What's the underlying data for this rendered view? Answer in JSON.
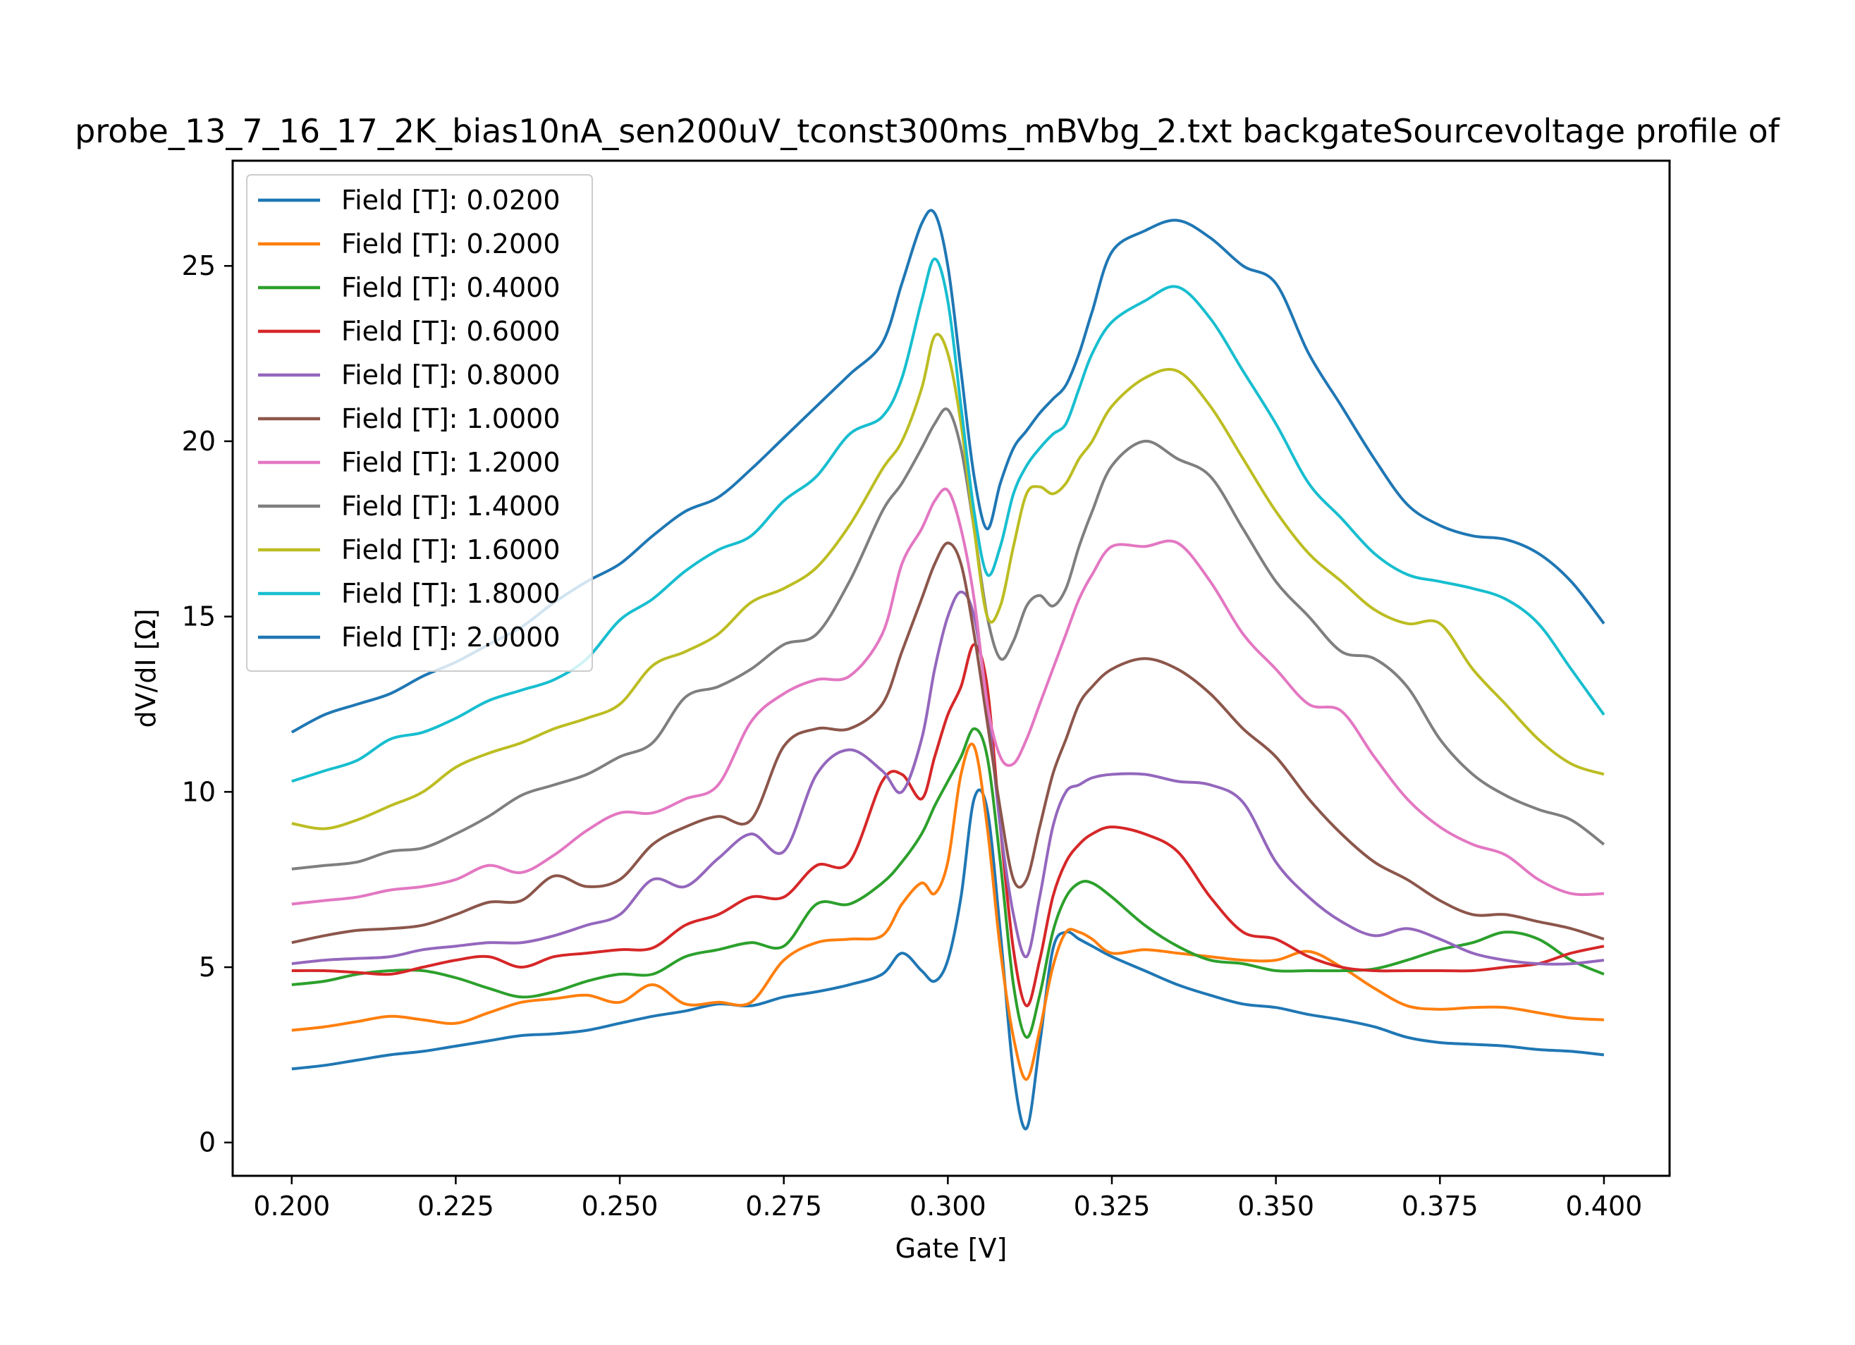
{
  "chart_data": {
    "type": "line",
    "title": "probe_13_7_16_17_2K_bias10nA_sen200uV_tconst300ms_mBVbg_2.txt backgateSourcevoltage profile of",
    "xlabel": "Gate [V]",
    "ylabel": "dV/dI [Ω]",
    "xlim": [
      0.191,
      0.41
    ],
    "ylim": [
      -0.95,
      28.0
    ],
    "xticks": [
      "0.200",
      "0.225",
      "0.250",
      "0.275",
      "0.300",
      "0.325",
      "0.350",
      "0.375",
      "0.400"
    ],
    "yticks": [
      "0",
      "5",
      "10",
      "15",
      "20",
      "25"
    ],
    "grid": false,
    "legend_position": "upper left",
    "x": [
      0.2,
      0.205,
      0.21,
      0.215,
      0.22,
      0.225,
      0.23,
      0.235,
      0.24,
      0.245,
      0.25,
      0.255,
      0.26,
      0.265,
      0.27,
      0.275,
      0.28,
      0.285,
      0.29,
      0.293,
      0.296,
      0.298,
      0.3,
      0.302,
      0.304,
      0.306,
      0.308,
      0.31,
      0.312,
      0.314,
      0.316,
      0.318,
      0.32,
      0.322,
      0.325,
      0.33,
      0.335,
      0.34,
      0.345,
      0.35,
      0.355,
      0.36,
      0.365,
      0.37,
      0.375,
      0.38,
      0.385,
      0.39,
      0.395,
      0.4
    ],
    "series": [
      {
        "name": "Field [T]: 0.0200",
        "color": "#1f77b4",
        "values": [
          2.1,
          2.2,
          2.35,
          2.5,
          2.6,
          2.75,
          2.9,
          3.05,
          3.1,
          3.2,
          3.4,
          3.6,
          3.75,
          3.95,
          3.9,
          4.15,
          4.3,
          4.5,
          4.8,
          5.4,
          4.9,
          4.6,
          5.2,
          7.0,
          9.8,
          9.5,
          6.0,
          2.0,
          0.4,
          2.8,
          5.5,
          6.0,
          5.8,
          5.6,
          5.3,
          4.9,
          4.5,
          4.2,
          3.95,
          3.85,
          3.65,
          3.5,
          3.3,
          3.0,
          2.85,
          2.8,
          2.75,
          2.65,
          2.6,
          2.5
        ]
      },
      {
        "name": "Field [T]: 0.2000",
        "color": "#ff7f0e",
        "values": [
          3.2,
          3.3,
          3.45,
          3.6,
          3.5,
          3.4,
          3.7,
          4.0,
          4.1,
          4.2,
          4.0,
          4.5,
          3.95,
          4.0,
          4.0,
          5.2,
          5.7,
          5.8,
          5.9,
          6.8,
          7.4,
          7.1,
          8.0,
          10.5,
          11.3,
          9.0,
          5.5,
          3.0,
          1.8,
          3.2,
          5.0,
          6.0,
          6.0,
          5.8,
          5.4,
          5.5,
          5.4,
          5.3,
          5.2,
          5.2,
          5.45,
          5.0,
          4.4,
          3.9,
          3.8,
          3.85,
          3.85,
          3.7,
          3.55,
          3.5
        ]
      },
      {
        "name": "Field [T]: 0.4000",
        "color": "#2ca02c",
        "values": [
          4.5,
          4.6,
          4.8,
          4.9,
          4.9,
          4.7,
          4.4,
          4.15,
          4.3,
          4.6,
          4.8,
          4.8,
          5.3,
          5.5,
          5.7,
          5.6,
          6.8,
          6.8,
          7.4,
          8.0,
          8.8,
          9.6,
          10.3,
          11.0,
          11.8,
          11.0,
          8.0,
          4.5,
          3.0,
          4.2,
          6.0,
          7.0,
          7.4,
          7.4,
          7.0,
          6.2,
          5.6,
          5.2,
          5.1,
          4.9,
          4.9,
          4.9,
          4.95,
          5.2,
          5.5,
          5.7,
          6.0,
          5.8,
          5.2,
          4.8
        ]
      },
      {
        "name": "Field [T]: 0.6000",
        "color": "#d62728",
        "values": [
          4.9,
          4.9,
          4.85,
          4.8,
          5.0,
          5.2,
          5.3,
          5.0,
          5.3,
          5.4,
          5.5,
          5.55,
          6.2,
          6.5,
          7.0,
          7.0,
          7.9,
          8.0,
          10.3,
          10.5,
          9.8,
          11.0,
          12.2,
          13.0,
          14.2,
          13.0,
          9.0,
          5.5,
          3.9,
          5.2,
          7.0,
          8.0,
          8.5,
          8.8,
          9.0,
          8.8,
          8.3,
          7.0,
          6.0,
          5.8,
          5.3,
          5.0,
          4.9,
          4.9,
          4.9,
          4.9,
          5.0,
          5.1,
          5.4,
          5.6
        ]
      },
      {
        "name": "Field [T]: 0.8000",
        "color": "#9467bd",
        "values": [
          5.1,
          5.2,
          5.25,
          5.3,
          5.5,
          5.6,
          5.7,
          5.7,
          5.9,
          6.2,
          6.5,
          7.5,
          7.3,
          8.1,
          8.8,
          8.3,
          10.5,
          11.2,
          10.6,
          10.0,
          11.5,
          13.5,
          15.0,
          15.7,
          15.0,
          12.5,
          9.0,
          6.5,
          5.3,
          7.0,
          9.0,
          10.0,
          10.2,
          10.4,
          10.5,
          10.5,
          10.3,
          10.2,
          9.7,
          8.0,
          7.0,
          6.3,
          5.9,
          6.1,
          5.8,
          5.4,
          5.2,
          5.1,
          5.1,
          5.2
        ]
      },
      {
        "name": "Field [T]: 1.0000",
        "color": "#8c564b",
        "values": [
          5.7,
          5.9,
          6.05,
          6.1,
          6.2,
          6.5,
          6.85,
          6.9,
          7.6,
          7.3,
          7.5,
          8.5,
          9.0,
          9.3,
          9.2,
          11.3,
          11.8,
          11.8,
          12.5,
          14.0,
          15.5,
          16.5,
          17.1,
          16.5,
          14.5,
          12.0,
          9.5,
          7.5,
          7.5,
          9.0,
          10.5,
          11.5,
          12.5,
          13.0,
          13.5,
          13.8,
          13.5,
          12.8,
          11.8,
          11.0,
          9.8,
          8.8,
          8.0,
          7.5,
          6.9,
          6.5,
          6.5,
          6.3,
          6.1,
          5.8
        ]
      },
      {
        "name": "Field [T]: 1.2000",
        "color": "#e377c2",
        "values": [
          6.8,
          6.9,
          7.0,
          7.2,
          7.3,
          7.5,
          7.9,
          7.7,
          8.2,
          8.9,
          9.4,
          9.4,
          9.8,
          10.2,
          12.0,
          12.8,
          13.2,
          13.3,
          14.5,
          16.5,
          17.5,
          18.3,
          18.6,
          17.5,
          15.5,
          12.5,
          11.0,
          10.8,
          11.5,
          12.5,
          13.5,
          14.5,
          15.5,
          16.2,
          17.0,
          17.0,
          17.1,
          16.0,
          14.5,
          13.5,
          12.5,
          12.3,
          11.0,
          9.8,
          9.0,
          8.5,
          8.2,
          7.5,
          7.1,
          7.1
        ]
      },
      {
        "name": "Field [T]: 1.4000",
        "color": "#7f7f7f",
        "values": [
          7.8,
          7.9,
          8.0,
          8.3,
          8.4,
          8.8,
          9.3,
          9.9,
          10.2,
          10.5,
          11.0,
          11.4,
          12.7,
          13.0,
          13.5,
          14.2,
          14.5,
          16.0,
          18.0,
          18.8,
          19.8,
          20.5,
          20.9,
          19.8,
          17.5,
          15.0,
          13.8,
          14.3,
          15.3,
          15.6,
          15.3,
          15.8,
          17.0,
          18.0,
          19.3,
          20.0,
          19.5,
          19.0,
          17.5,
          16.0,
          15.0,
          14.0,
          13.8,
          13.0,
          11.5,
          10.5,
          9.9,
          9.5,
          9.2,
          8.5
        ]
      },
      {
        "name": "Field [T]: 1.6000",
        "color": "#bcbd22",
        "values": [
          9.1,
          8.95,
          9.2,
          9.6,
          10.0,
          10.7,
          11.1,
          11.4,
          11.8,
          12.1,
          12.5,
          13.6,
          14.0,
          14.5,
          15.4,
          15.8,
          16.4,
          17.6,
          19.2,
          20.0,
          21.5,
          23.0,
          22.5,
          20.5,
          17.5,
          15.0,
          15.3,
          17.0,
          18.5,
          18.7,
          18.5,
          18.8,
          19.5,
          20.0,
          21.0,
          21.8,
          22.0,
          21.0,
          19.5,
          18.0,
          16.8,
          16.0,
          15.2,
          14.8,
          14.8,
          13.5,
          12.5,
          11.5,
          10.8,
          10.5
        ]
      },
      {
        "name": "Field [T]: 1.8000",
        "color": "#17becf",
        "values": [
          10.3,
          10.6,
          10.9,
          11.5,
          11.7,
          12.1,
          12.6,
          12.9,
          13.2,
          13.8,
          14.9,
          15.5,
          16.3,
          16.9,
          17.3,
          18.3,
          19.0,
          20.2,
          20.7,
          21.8,
          24.0,
          25.2,
          24.0,
          21.0,
          18.0,
          16.2,
          17.0,
          18.5,
          19.3,
          19.8,
          20.2,
          20.5,
          21.5,
          22.5,
          23.4,
          24.0,
          24.4,
          23.5,
          22.0,
          20.5,
          18.8,
          17.8,
          16.8,
          16.2,
          16.0,
          15.8,
          15.5,
          14.8,
          13.5,
          12.2
        ]
      },
      {
        "name": "Field [T]: 2.0000",
        "color": "#1f77b4",
        "values": [
          11.7,
          12.2,
          12.5,
          12.8,
          13.3,
          13.7,
          14.2,
          14.7,
          15.4,
          16.0,
          16.5,
          17.3,
          18.0,
          18.4,
          19.2,
          20.1,
          21.0,
          21.9,
          22.8,
          24.5,
          26.2,
          26.5,
          25.0,
          22.0,
          19.0,
          17.5,
          18.8,
          19.8,
          20.3,
          20.8,
          21.2,
          21.6,
          22.5,
          23.7,
          25.4,
          26.0,
          26.3,
          25.8,
          25.0,
          24.5,
          22.5,
          21.0,
          19.5,
          18.2,
          17.6,
          17.3,
          17.2,
          16.8,
          16.0,
          14.8
        ]
      }
    ]
  }
}
